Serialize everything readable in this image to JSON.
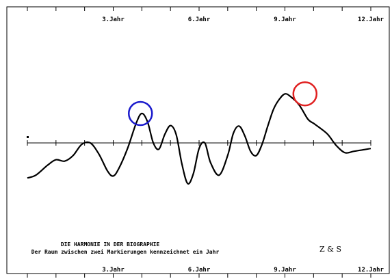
{
  "chart_data": {
    "type": "line",
    "xlabel": "",
    "ylabel": "",
    "xlim": [
      0,
      12
    ],
    "ylim": [
      -1.6,
      2.0
    ],
    "x_ticks": [
      0,
      1,
      2,
      3,
      4,
      5,
      6,
      7,
      8,
      9,
      10,
      11,
      12
    ],
    "tick_labels": [
      {
        "x": 3,
        "text": "3.Jahr"
      },
      {
        "x": 6,
        "text": "6.Jahr"
      },
      {
        "x": 9,
        "text": "9.Jahr"
      },
      {
        "x": 12,
        "text": "12.Jahr"
      }
    ],
    "caption_line1": "DIE HARMONIE IN DER BIOGRAPHIE",
    "caption_line2": "Der Raum zwischen zwei Markierungen kennzeichnet ein Jahr",
    "signature": "Z & S",
    "series": [
      {
        "x": [
          0.0,
          0.3,
          0.7,
          1.0,
          1.3,
          1.6,
          1.9,
          2.2,
          2.5,
          2.8,
          3.0,
          3.2,
          3.5,
          3.8,
          4.0,
          4.2,
          4.4,
          4.6,
          4.8,
          5.0,
          5.2,
          5.4,
          5.6,
          5.8,
          6.0,
          6.2,
          6.4,
          6.7,
          7.0,
          7.2,
          7.4,
          7.6,
          7.8,
          8.0,
          8.2,
          8.4,
          8.6,
          8.8,
          9.0,
          9.2,
          9.5,
          9.8,
          10.0,
          10.2,
          10.5,
          10.8,
          11.1,
          11.4,
          11.7,
          12.0
        ],
        "y": [
          -1.25,
          -1.15,
          -0.8,
          -0.6,
          -0.65,
          -0.45,
          -0.05,
          0.0,
          -0.4,
          -1.0,
          -1.18,
          -0.9,
          -0.2,
          0.7,
          1.05,
          0.75,
          0.0,
          -0.22,
          0.3,
          0.62,
          0.3,
          -0.75,
          -1.45,
          -1.1,
          -0.2,
          0.0,
          -0.7,
          -1.15,
          -0.45,
          0.35,
          0.6,
          0.25,
          -0.3,
          -0.45,
          -0.05,
          0.6,
          1.2,
          1.55,
          1.75,
          1.65,
          1.35,
          0.85,
          0.7,
          0.55,
          0.3,
          -0.1,
          -0.35,
          -0.3,
          -0.25,
          -0.2
        ]
      }
    ],
    "markers": [
      {
        "x": 3.95,
        "y": 1.05,
        "color": "#1a1acc"
      },
      {
        "x": 9.7,
        "y": 1.75,
        "color": "#e02020"
      }
    ]
  }
}
